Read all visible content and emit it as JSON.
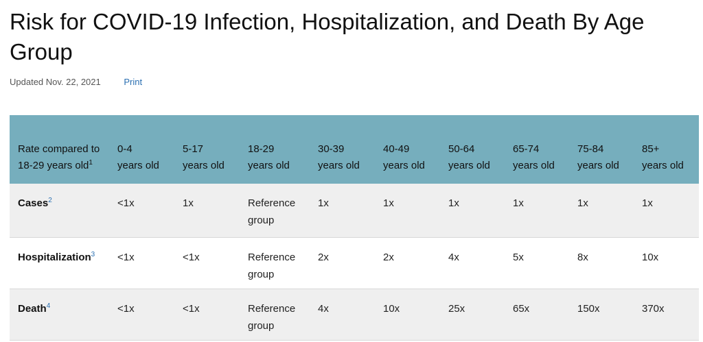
{
  "page": {
    "title": "Risk for COVID-19 Infection, Hospitalization, and Death By Age Group",
    "updated": "Updated Nov. 22, 2021",
    "print_label": "Print"
  },
  "table": {
    "corner_label": "Rate compared to 18-29 years old",
    "corner_footnote": "1",
    "headers": [
      {
        "line1": "0-4",
        "line2": "years old"
      },
      {
        "line1": "5-17",
        "line2": "years old"
      },
      {
        "line1": "18-29",
        "line2": "years old"
      },
      {
        "line1": "30-39",
        "line2": "years old"
      },
      {
        "line1": "40-49",
        "line2": "years old"
      },
      {
        "line1": "50-64",
        "line2": "years old"
      },
      {
        "line1": "65-74",
        "line2": "years old"
      },
      {
        "line1": "75-84",
        "line2": "years old"
      },
      {
        "line1": "85+",
        "line2": "years old"
      }
    ],
    "rows": [
      {
        "label": "Cases",
        "footnote": "2",
        "cells": [
          "<1x",
          "1x",
          "Reference group",
          "1x",
          "1x",
          "1x",
          "1x",
          "1x",
          "1x"
        ]
      },
      {
        "label": "Hospitalization",
        "footnote": "3",
        "cells": [
          "<1x",
          "<1x",
          "Reference group",
          "2x",
          "2x",
          "4x",
          "5x",
          "8x",
          "10x"
        ]
      },
      {
        "label": "Death",
        "footnote": "4",
        "cells": [
          "<1x",
          "<1x",
          "Reference group",
          "4x",
          "10x",
          "25x",
          "65x",
          "150x",
          "370x"
        ]
      }
    ]
  }
}
